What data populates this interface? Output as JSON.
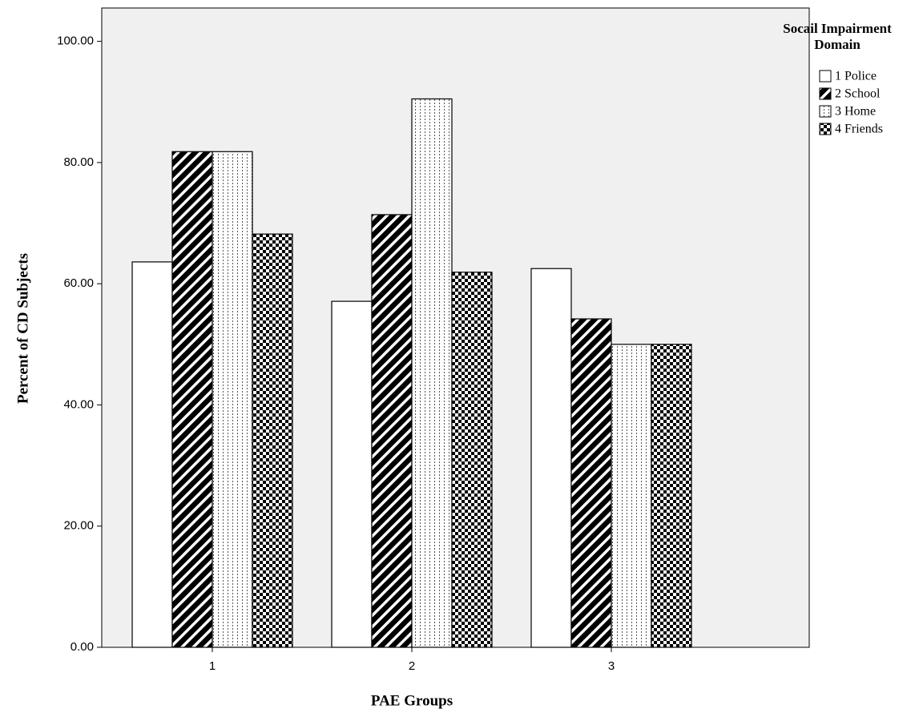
{
  "chart_data": {
    "type": "bar",
    "y_label": "Percent of CD Subjects",
    "x_label": "PAE Groups",
    "legend_title": "Socail Impairment Domain",
    "categories": [
      "1",
      "2",
      "3"
    ],
    "series": [
      {
        "name": "1 Police",
        "color": "#ffffff",
        "pattern": "none",
        "values": [
          63.6,
          57.1,
          62.5
        ]
      },
      {
        "name": "2 School",
        "color": "#000000",
        "pattern": "diagonal",
        "values": [
          81.8,
          71.4,
          54.2
        ]
      },
      {
        "name": "3 Home",
        "color": "#ffffff",
        "pattern": "dots",
        "values": [
          81.8,
          90.5,
          50.0
        ]
      },
      {
        "name": "4 Friends",
        "color": "#000000",
        "pattern": "checker",
        "values": [
          68.2,
          61.9,
          50.0
        ]
      }
    ],
    "ylim": [
      0,
      105.5
    ],
    "yticks": [
      {
        "value": 0,
        "label": "0.00"
      },
      {
        "value": 20,
        "label": "20.00"
      },
      {
        "value": 40,
        "label": "40.00"
      },
      {
        "value": 60,
        "label": "60.00"
      },
      {
        "value": 80,
        "label": "80.00"
      },
      {
        "value": 100,
        "label": "100.00"
      }
    ],
    "legend": "right",
    "grid": false
  }
}
